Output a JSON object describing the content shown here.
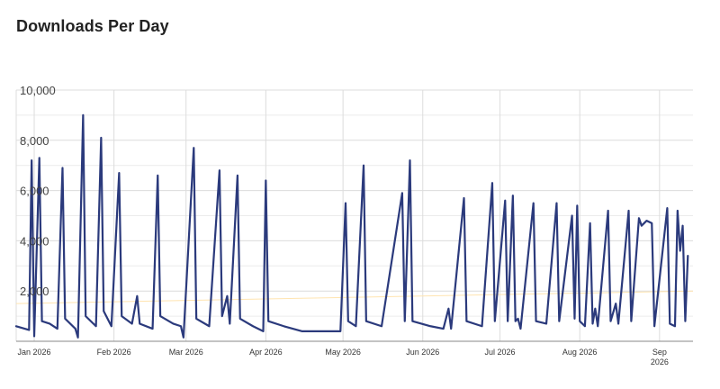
{
  "page": {
    "title": "Downloads Per Day"
  },
  "colors": {
    "line": "#2b3a7c",
    "trend": "#ffe4b0",
    "grid": "#dcdcdc",
    "background": "#ffffff"
  },
  "chart_data": {
    "type": "line",
    "title": "Downloads Per Day",
    "xlabel": "",
    "ylabel": "",
    "ylim": [
      0,
      10000
    ],
    "yticks": [
      {
        "value": 2000,
        "label": "2,000"
      },
      {
        "value": 4000,
        "label": "4,000"
      },
      {
        "value": 6000,
        "label": "6,000"
      },
      {
        "value": 8000,
        "label": "8,000"
      },
      {
        "value": 10000,
        "label": "10,000"
      }
    ],
    "xlim": [
      "2025-12-25",
      "2026-09-14"
    ],
    "xticks": [
      {
        "date": "2026-01-01",
        "label": "Jan 2026"
      },
      {
        "date": "2026-02-01",
        "label": "Feb 2026"
      },
      {
        "date": "2026-03-01",
        "label": "Mar 2026"
      },
      {
        "date": "2026-04-01",
        "label": "Apr 2026"
      },
      {
        "date": "2026-05-01",
        "label": "May 2026"
      },
      {
        "date": "2026-06-01",
        "label": "Jun 2026"
      },
      {
        "date": "2026-07-01",
        "label": "Jul 2026"
      },
      {
        "date": "2026-08-01",
        "label": "Aug 2026"
      },
      {
        "date": "2026-09-01",
        "label": "Sep",
        "label2": "2026"
      }
    ],
    "grid": true,
    "legend": "none",
    "series": [
      {
        "values": [
          [
            "2025-12-25",
            600
          ],
          [
            "2025-12-30",
            450
          ],
          [
            "2025-12-31",
            7200
          ],
          [
            "2026-01-01",
            200
          ],
          [
            "2026-01-03",
            7300
          ],
          [
            "2026-01-04",
            800
          ],
          [
            "2026-01-07",
            700
          ],
          [
            "2026-01-10",
            500
          ],
          [
            "2026-01-12",
            6900
          ],
          [
            "2026-01-13",
            900
          ],
          [
            "2026-01-17",
            500
          ],
          [
            "2026-01-18",
            150
          ],
          [
            "2026-01-20",
            9000
          ],
          [
            "2026-01-21",
            1000
          ],
          [
            "2026-01-25",
            600
          ],
          [
            "2026-01-27",
            8100
          ],
          [
            "2026-01-28",
            1200
          ],
          [
            "2026-01-31",
            600
          ],
          [
            "2026-02-03",
            6700
          ],
          [
            "2026-02-04",
            1000
          ],
          [
            "2026-02-08",
            700
          ],
          [
            "2026-02-10",
            1800
          ],
          [
            "2026-02-11",
            700
          ],
          [
            "2026-02-16",
            500
          ],
          [
            "2026-02-18",
            6600
          ],
          [
            "2026-02-19",
            1000
          ],
          [
            "2026-02-24",
            700
          ],
          [
            "2026-02-27",
            600
          ],
          [
            "2026-02-28",
            150
          ],
          [
            "2026-03-04",
            7700
          ],
          [
            "2026-03-05",
            900
          ],
          [
            "2026-03-10",
            600
          ],
          [
            "2026-03-14",
            6800
          ],
          [
            "2026-03-15",
            1000
          ],
          [
            "2026-03-17",
            1800
          ],
          [
            "2026-03-18",
            700
          ],
          [
            "2026-03-21",
            6600
          ],
          [
            "2026-03-22",
            900
          ],
          [
            "2026-03-27",
            600
          ],
          [
            "2026-03-31",
            400
          ],
          [
            "2026-04-01",
            6400
          ],
          [
            "2026-04-02",
            800
          ],
          [
            "2026-04-08",
            600
          ],
          [
            "2026-04-15",
            400
          ],
          [
            "2026-04-23",
            400
          ],
          [
            "2026-04-30",
            400
          ],
          [
            "2026-05-02",
            5500
          ],
          [
            "2026-05-03",
            800
          ],
          [
            "2026-05-06",
            600
          ],
          [
            "2026-05-09",
            7000
          ],
          [
            "2026-05-10",
            800
          ],
          [
            "2026-05-16",
            600
          ],
          [
            "2026-05-24",
            5900
          ],
          [
            "2026-05-25",
            800
          ],
          [
            "2026-05-27",
            7200
          ],
          [
            "2026-05-28",
            800
          ],
          [
            "2026-06-04",
            600
          ],
          [
            "2026-06-09",
            500
          ],
          [
            "2026-06-11",
            1300
          ],
          [
            "2026-06-12",
            500
          ],
          [
            "2026-06-17",
            5700
          ],
          [
            "2026-06-18",
            800
          ],
          [
            "2026-06-24",
            600
          ],
          [
            "2026-06-28",
            6300
          ],
          [
            "2026-06-29",
            800
          ],
          [
            "2026-07-03",
            5600
          ],
          [
            "2026-07-04",
            800
          ],
          [
            "2026-07-06",
            5800
          ],
          [
            "2026-07-07",
            800
          ],
          [
            "2026-07-08",
            900
          ],
          [
            "2026-07-09",
            500
          ],
          [
            "2026-07-14",
            5500
          ],
          [
            "2026-07-15",
            800
          ],
          [
            "2026-07-19",
            700
          ],
          [
            "2026-07-23",
            5500
          ],
          [
            "2026-07-24",
            800
          ],
          [
            "2026-07-29",
            5000
          ],
          [
            "2026-07-30",
            900
          ],
          [
            "2026-07-31",
            5400
          ],
          [
            "2026-08-01",
            800
          ],
          [
            "2026-08-03",
            600
          ],
          [
            "2026-08-05",
            4700
          ],
          [
            "2026-08-06",
            700
          ],
          [
            "2026-08-07",
            1300
          ],
          [
            "2026-08-08",
            600
          ],
          [
            "2026-08-12",
            5200
          ],
          [
            "2026-08-13",
            800
          ],
          [
            "2026-08-15",
            1500
          ],
          [
            "2026-08-16",
            700
          ],
          [
            "2026-08-20",
            5200
          ],
          [
            "2026-08-21",
            800
          ],
          [
            "2026-08-24",
            4900
          ],
          [
            "2026-08-25",
            4600
          ],
          [
            "2026-08-27",
            4800
          ],
          [
            "2026-08-29",
            4700
          ],
          [
            "2026-08-30",
            600
          ],
          [
            "2026-09-04",
            5300
          ],
          [
            "2026-09-05",
            700
          ],
          [
            "2026-09-07",
            600
          ],
          [
            "2026-09-08",
            5200
          ],
          [
            "2026-09-09",
            3600
          ],
          [
            "2026-09-10",
            4600
          ],
          [
            "2026-09-11",
            800
          ],
          [
            "2026-09-12",
            3400
          ]
        ]
      }
    ],
    "trend": [
      [
        "2025-12-25",
        1500
      ],
      [
        "2026-09-14",
        2000
      ]
    ]
  }
}
